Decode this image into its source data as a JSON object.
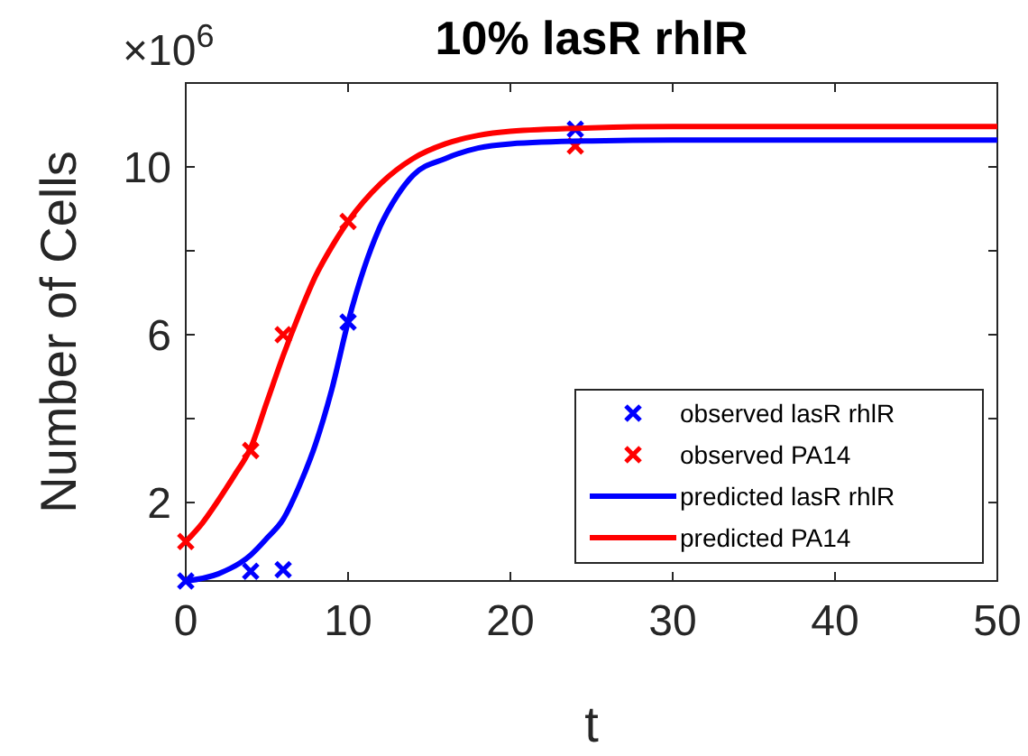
{
  "chart_data": {
    "type": "line",
    "title": "10% lasR rhlR",
    "xlabel": "t",
    "ylabel": "Number of Cells",
    "annotations": [
      "×10$^{6}$"
    ],
    "xlim": [
      0,
      50
    ],
    "xticks": [
      0,
      10,
      20,
      30,
      40,
      50
    ],
    "ylim": [
      0.13,
      12
    ],
    "yticks": [
      2,
      {
        "value": 4,
        "label": null
      },
      6,
      {
        "value": 8,
        "label": null
      },
      10
    ],
    "grid": false,
    "legend": "bottom right",
    "line_style": "solid",
    "series": [
      {
        "name": "observed lasR rhlR",
        "type": "scatter",
        "marker": "cross",
        "color": "#0000ff",
        "x": [
          0,
          4,
          6,
          10,
          24
        ],
        "values": [
          0.13,
          0.36,
          0.4,
          6.3,
          10.9
        ]
      },
      {
        "name": "observed PA14",
        "type": "scatter",
        "marker": "cross",
        "color": "#ff0000",
        "x": [
          0,
          4,
          6,
          10,
          24
        ],
        "values": [
          1.07,
          3.24,
          6.0,
          8.7,
          10.5
        ]
      },
      {
        "name": "predicted lasR rhlR",
        "color": "#0000ff",
        "x": [
          0,
          2,
          4,
          5,
          6,
          7,
          8,
          9,
          10,
          11,
          12,
          13,
          14,
          16,
          18,
          20,
          25,
          30,
          50
        ],
        "values": [
          0.13,
          0.3,
          0.75,
          1.15,
          1.6,
          2.4,
          3.4,
          4.7,
          6.3,
          7.6,
          8.6,
          9.3,
          9.8,
          10.2,
          10.45,
          10.55,
          10.62,
          10.64,
          10.64
        ]
      },
      {
        "name": "predicted PA14",
        "color": "#ff0000",
        "x": [
          0,
          1,
          2,
          3,
          4,
          5,
          6,
          7,
          8,
          9,
          10,
          12,
          14,
          16,
          18,
          20,
          25,
          30,
          50
        ],
        "values": [
          1.07,
          1.5,
          2.05,
          2.65,
          3.3,
          4.4,
          5.5,
          6.5,
          7.4,
          8.1,
          8.7,
          9.6,
          10.2,
          10.55,
          10.75,
          10.85,
          10.93,
          10.96,
          10.96
        ]
      }
    ]
  }
}
